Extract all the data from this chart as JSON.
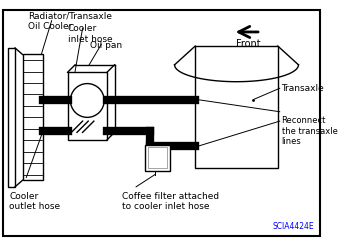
{
  "background_color": "#ffffff",
  "border_color": "#000000",
  "text_labels": {
    "radiator": "Radiator/Transaxle\nOil Cooler",
    "cooler_inlet": "Cooler\ninlet hose",
    "oil_pan": "Oil pan",
    "front": "Front",
    "transaxle": "Transaxle",
    "reconnect": "Reconnect\nthe transaxle\nlines",
    "cooler_outlet": "Cooler\noutlet hose",
    "coffee_filter": "Coffee filter attached\nto cooler inlet hose",
    "code": "SCIA4424E"
  }
}
